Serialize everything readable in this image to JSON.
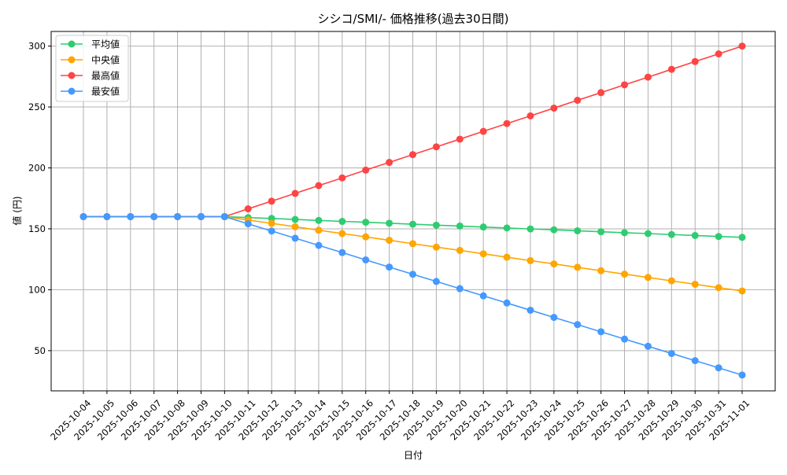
{
  "chart_data": {
    "type": "line",
    "title": "シシコ/SMI/- 価格推移(過去30日間)",
    "xlabel": "日付",
    "ylabel": "値 (円)",
    "ylim": [
      17,
      312
    ],
    "yticks": [
      50,
      100,
      150,
      200,
      250,
      300
    ],
    "grid": true,
    "legend_position": "top-left",
    "x": [
      "2025-10-04",
      "2025-10-05",
      "2025-10-06",
      "2025-10-07",
      "2025-10-08",
      "2025-10-09",
      "2025-10-10",
      "2025-10-11",
      "2025-10-12",
      "2025-10-13",
      "2025-10-14",
      "2025-10-15",
      "2025-10-16",
      "2025-10-17",
      "2025-10-18",
      "2025-10-19",
      "2025-10-20",
      "2025-10-21",
      "2025-10-22",
      "2025-10-23",
      "2025-10-24",
      "2025-10-25",
      "2025-10-26",
      "2025-10-27",
      "2025-10-28",
      "2025-10-29",
      "2025-10-30",
      "2025-10-31",
      "2025-11-01"
    ],
    "series": [
      {
        "name": "平均値",
        "color": "#2ecc71",
        "values": [
          160,
          160,
          160,
          160,
          160,
          160,
          160,
          159.2,
          158.5,
          157.7,
          156.9,
          156.1,
          155.4,
          154.6,
          153.8,
          153.0,
          152.3,
          151.5,
          150.7,
          149.9,
          149.2,
          148.4,
          147.6,
          146.8,
          146.1,
          145.3,
          144.5,
          143.7,
          143.0
        ]
      },
      {
        "name": "中央値",
        "color": "#ffa500",
        "values": [
          160,
          160,
          160,
          160,
          160,
          160,
          160,
          157.2,
          154.5,
          151.7,
          148.9,
          146.1,
          143.4,
          140.6,
          137.8,
          135.0,
          132.3,
          129.5,
          126.7,
          123.9,
          121.2,
          118.4,
          115.6,
          112.8,
          110.1,
          107.3,
          104.5,
          101.7,
          99.0
        ]
      },
      {
        "name": "最高値",
        "color": "#ff4444",
        "values": [
          160,
          160,
          160,
          160,
          160,
          160,
          160,
          166.4,
          172.7,
          179.1,
          185.5,
          191.8,
          198.2,
          204.5,
          210.9,
          217.3,
          223.6,
          230.0,
          236.4,
          242.7,
          249.1,
          255.5,
          261.8,
          268.2,
          274.5,
          280.9,
          287.3,
          293.6,
          300.0
        ]
      },
      {
        "name": "最安値",
        "color": "#4499ff",
        "values": [
          160,
          160,
          160,
          160,
          160,
          160,
          160,
          154.1,
          148.2,
          142.3,
          136.4,
          130.5,
          124.5,
          118.6,
          112.7,
          106.8,
          100.9,
          95.0,
          89.1,
          83.2,
          77.3,
          71.4,
          65.5,
          59.5,
          53.6,
          47.7,
          41.8,
          35.9,
          30.0
        ]
      }
    ]
  }
}
